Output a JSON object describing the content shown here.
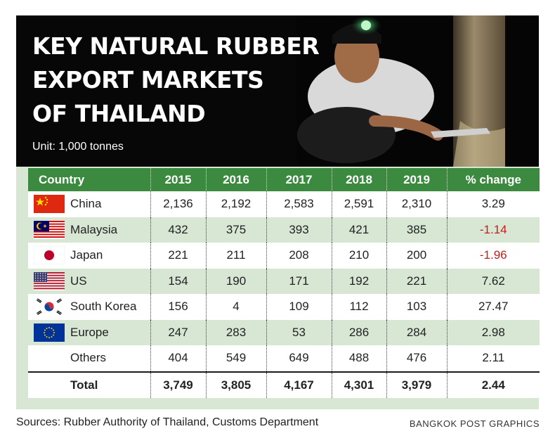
{
  "title": {
    "line1": "KEY NATURAL RUBBER",
    "line2": "EXPORT MARKETS",
    "line3": "OF THAILAND"
  },
  "unit": "Unit: 1,000 tonnes",
  "columns": [
    "Country",
    "2015",
    "2016",
    "2017",
    "2018",
    "2019",
    "% change"
  ],
  "rows": [
    {
      "flag": "china-flag-icon",
      "country": "China",
      "v2015": "2,136",
      "v2016": "2,192",
      "v2017": "2,583",
      "v2018": "2,591",
      "v2019": "2,310",
      "change": "3.29"
    },
    {
      "flag": "malaysia-flag-icon",
      "country": "Malaysia",
      "v2015": "432",
      "v2016": "375",
      "v2017": "393",
      "v2018": "421",
      "v2019": "385",
      "change": "-1.14"
    },
    {
      "flag": "japan-flag-icon",
      "country": "Japan",
      "v2015": "221",
      "v2016": "211",
      "v2017": "208",
      "v2018": "210",
      "v2019": "200",
      "change": "-1.96"
    },
    {
      "flag": "us-flag-icon",
      "country": "US",
      "v2015": "154",
      "v2016": "190",
      "v2017": "171",
      "v2018": "192",
      "v2019": "221",
      "change": "7.62"
    },
    {
      "flag": "south-korea-flag-icon",
      "country": "South Korea",
      "v2015": "156",
      "v2016": "4",
      "v2017": "109",
      "v2018": "112",
      "v2019": "103",
      "change": "27.47"
    },
    {
      "flag": "eu-flag-icon",
      "country": "Europe",
      "v2015": "247",
      "v2016": "283",
      "v2017": "53",
      "v2018": "286",
      "v2019": "284",
      "change": "2.98"
    },
    {
      "flag": "",
      "country": "Others",
      "v2015": "404",
      "v2016": "549",
      "v2017": "649",
      "v2018": "488",
      "v2019": "476",
      "change": "2.11"
    }
  ],
  "total": {
    "label": "Total",
    "v2015": "3,749",
    "v2016": "3,805",
    "v2017": "4,167",
    "v2018": "4,301",
    "v2019": "3,979",
    "change": "2.44"
  },
  "colors": {
    "header_green": "#3c8a3f",
    "band_green": "#d7e7d4",
    "negative_red": "#c41f1f",
    "banner_black": "#070707"
  },
  "photo_icon": "rubber-tapper-photo",
  "source": "Sources: Rubber Authority of Thailand, Customs Department",
  "credit": "BANGKOK POST GRAPHICS",
  "chart_data": {
    "type": "table",
    "title": "KEY NATURAL RUBBER EXPORT MARKETS OF THAILAND",
    "subtitle": "Unit: 1,000 tonnes",
    "columns": [
      "Country",
      "2015",
      "2016",
      "2017",
      "2018",
      "2019",
      "% change"
    ],
    "categories": [
      "2015",
      "2016",
      "2017",
      "2018",
      "2019"
    ],
    "series": [
      {
        "name": "China",
        "values": [
          2136,
          2192,
          2583,
          2591,
          2310
        ],
        "pct_change": 3.29
      },
      {
        "name": "Malaysia",
        "values": [
          432,
          375,
          393,
          421,
          385
        ],
        "pct_change": -1.14
      },
      {
        "name": "Japan",
        "values": [
          221,
          211,
          208,
          210,
          200
        ],
        "pct_change": -1.96
      },
      {
        "name": "US",
        "values": [
          154,
          190,
          171,
          192,
          221
        ],
        "pct_change": 7.62
      },
      {
        "name": "South Korea",
        "values": [
          156,
          4,
          109,
          112,
          103
        ],
        "pct_change": 27.47
      },
      {
        "name": "Europe",
        "values": [
          247,
          283,
          53,
          286,
          284
        ],
        "pct_change": 2.98
      },
      {
        "name": "Others",
        "values": [
          404,
          549,
          649,
          488,
          476
        ],
        "pct_change": 2.11
      }
    ],
    "total": {
      "name": "Total",
      "values": [
        3749,
        3805,
        4167,
        4301,
        3979
      ],
      "pct_change": 2.44
    }
  }
}
